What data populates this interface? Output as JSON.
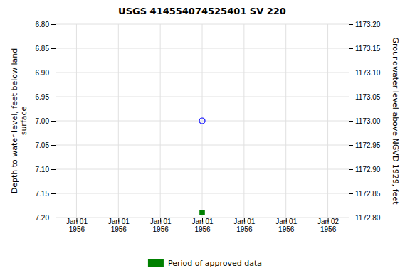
{
  "chart_data": {
    "type": "scatter",
    "title": "USGS 414554074525401 SV 220",
    "y_label": "Depth to water level, feet below land\n surface",
    "y2_label": "Groundwater level above NGVD 1929, feet",
    "categories": [
      "Jan 01\n1956",
      "Jan 01\n1956",
      "Jan 01\n1956",
      "Jan 01\n1956",
      "Jan 01\n1956",
      "Jan 01\n1956",
      "Jan 02\n1956"
    ],
    "series": [
      {
        "color": "blue",
        "marker": "circle-open",
        "values": [
          null,
          null,
          null,
          7.0,
          null,
          null,
          null
        ]
      },
      {
        "name": "Period of approved data",
        "color": "green",
        "marker": "square",
        "values": [
          null,
          null,
          null,
          7.19,
          null,
          null,
          null
        ]
      }
    ],
    "ylim": [
      7.2,
      6.8
    ],
    "yticks": [
      {
        "value": 6.8,
        "label": "6.80"
      },
      6.85,
      {
        "value": 6.9,
        "label": "6.90"
      },
      6.95,
      {
        "value": 7.0,
        "label": "7.00"
      },
      7.05,
      {
        "value": 7.1,
        "label": "7.10"
      },
      7.15,
      {
        "value": 7.2,
        "label": "7.20"
      }
    ],
    "y2lim": [
      1172.8,
      1173.2
    ],
    "y2ticks": [
      {
        "value": 1173.2,
        "label": "1173.20"
      },
      1173.15,
      {
        "value": 1173.1,
        "label": "1173.10"
      },
      1173.05,
      {
        "value": 1173.0,
        "label": "1173.00"
      },
      1172.95,
      {
        "value": 1172.9,
        "label": "1172.90"
      },
      1172.85,
      {
        "value": 1172.8,
        "label": "1172.80"
      }
    ],
    "grid": true,
    "legend": "bottom"
  }
}
